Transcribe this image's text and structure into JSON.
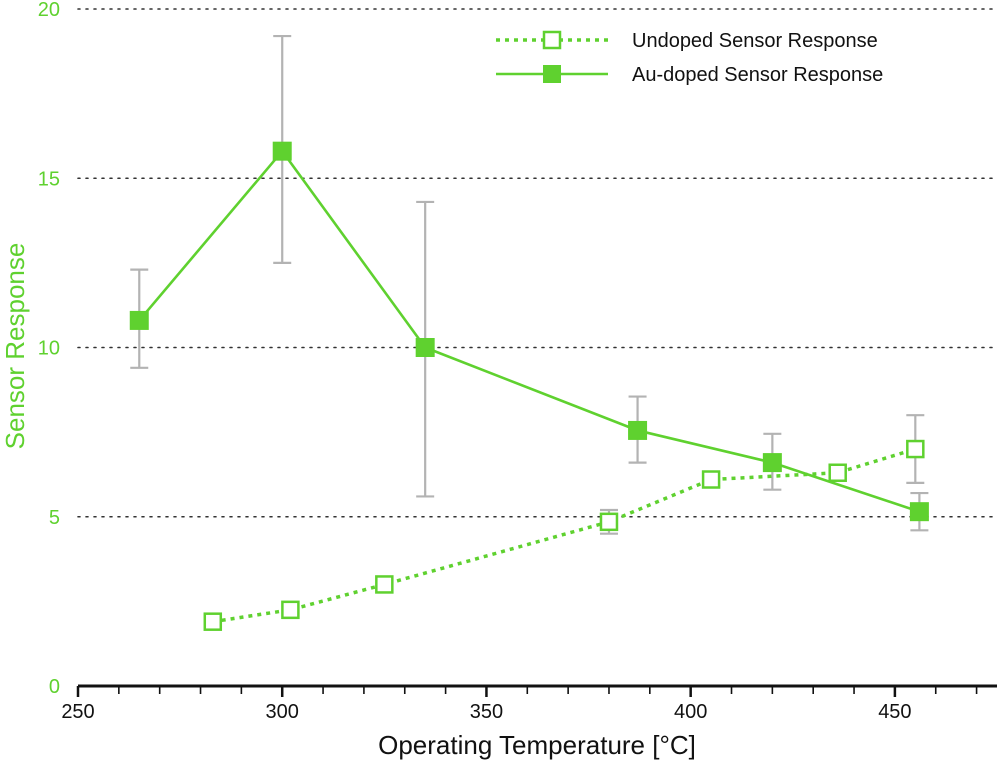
{
  "chart_data": {
    "type": "line",
    "title": "",
    "xlabel": "Operating Temperature [°C]",
    "ylabel": "Sensor Response",
    "xlim": [
      250,
      475
    ],
    "ylim": [
      0,
      20
    ],
    "x_ticks": [
      250,
      300,
      350,
      400,
      450
    ],
    "y_ticks": [
      0,
      5,
      10,
      15,
      20
    ],
    "grid": "horizontal dotted",
    "legend_position": "top-right",
    "series": [
      {
        "name": "Undoped Sensor Response",
        "style": "dotted",
        "marker": "open-square",
        "color": "#5fd12f",
        "points": [
          {
            "x": 283,
            "y": 1.9,
            "err_low": null,
            "err_high": null
          },
          {
            "x": 302,
            "y": 2.25,
            "err_low": null,
            "err_high": null
          },
          {
            "x": 325,
            "y": 3.0,
            "err_low": null,
            "err_high": null
          },
          {
            "x": 380,
            "y": 4.85,
            "err_low": 4.5,
            "err_high": 5.2
          },
          {
            "x": 405,
            "y": 6.1,
            "err_low": 5.9,
            "err_high": 6.3
          },
          {
            "x": 436,
            "y": 6.3,
            "err_low": null,
            "err_high": null
          },
          {
            "x": 455,
            "y": 7.0,
            "err_low": 6.0,
            "err_high": 8.0
          }
        ]
      },
      {
        "name": "Au-doped Sensor Response",
        "style": "solid",
        "marker": "filled-square",
        "color": "#5fd12f",
        "points": [
          {
            "x": 265,
            "y": 10.8,
            "err_low": 9.4,
            "err_high": 12.3
          },
          {
            "x": 300,
            "y": 15.8,
            "err_low": 12.5,
            "err_high": 19.2
          },
          {
            "x": 335,
            "y": 10.0,
            "err_low": 5.6,
            "err_high": 14.3
          },
          {
            "x": 387,
            "y": 7.55,
            "err_low": 6.6,
            "err_high": 8.55
          },
          {
            "x": 420,
            "y": 6.6,
            "err_low": 5.8,
            "err_high": 7.45
          },
          {
            "x": 456,
            "y": 5.15,
            "err_low": 4.6,
            "err_high": 5.7
          }
        ]
      }
    ]
  },
  "colors": {
    "series": "#5fd12f",
    "error_bar": "#b3b3b3",
    "grid": "#333333",
    "axis": "#111111",
    "ylabel": "#5fd12f"
  }
}
